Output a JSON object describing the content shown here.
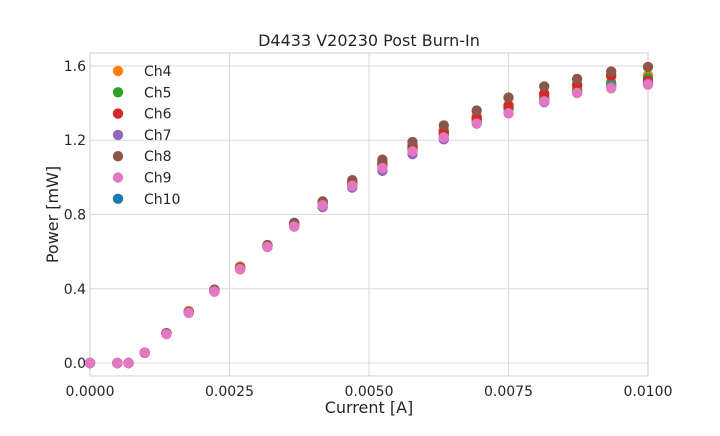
{
  "chart_data": {
    "type": "scatter",
    "title": "D4433 V20230 Post Burn-In",
    "xlabel": "Current [A]",
    "ylabel": "Power [mW]",
    "xlim": [
      0.0,
      0.01
    ],
    "ylim": [
      -0.07,
      1.67
    ],
    "xticks": [
      0.0,
      0.0025,
      0.005,
      0.0075,
      0.01
    ],
    "xtick_labels": [
      "0.0000",
      "0.0025",
      "0.0050",
      "0.0075",
      "0.0100"
    ],
    "yticks": [
      0.0,
      0.4,
      0.8,
      1.2,
      1.6
    ],
    "ytick_labels": [
      "0.0",
      "0.4",
      "0.8",
      "1.2",
      "1.6"
    ],
    "grid": true,
    "legend_position": "top-left",
    "x": [
      0.0,
      0.00049,
      0.00069,
      0.00098,
      0.00137,
      0.00177,
      0.00223,
      0.00269,
      0.00318,
      0.00366,
      0.00417,
      0.0047,
      0.00524,
      0.00578,
      0.00634,
      0.00693,
      0.0075,
      0.00814,
      0.00873,
      0.00934,
      0.01
    ],
    "series": [
      {
        "name": "Ch4",
        "color": "#ff7f0e",
        "values": [
          0.0,
          0.0,
          0.0,
          0.055,
          0.16,
          0.28,
          0.395,
          0.52,
          0.635,
          0.75,
          0.865,
          0.97,
          1.075,
          1.17,
          1.255,
          1.33,
          1.39,
          1.45,
          1.49,
          1.54,
          1.55
        ]
      },
      {
        "name": "Ch5",
        "color": "#2ca02c",
        "values": [
          0.0,
          0.0,
          0.0,
          0.055,
          0.16,
          0.275,
          0.39,
          0.51,
          0.63,
          0.75,
          0.87,
          0.975,
          1.08,
          1.17,
          1.245,
          1.31,
          1.37,
          1.42,
          1.47,
          1.51,
          1.535
        ]
      },
      {
        "name": "Ch6",
        "color": "#d62728",
        "values": [
          0.0,
          0.0,
          0.0,
          0.055,
          0.16,
          0.275,
          0.39,
          0.51,
          0.63,
          0.745,
          0.86,
          0.965,
          1.07,
          1.16,
          1.24,
          1.32,
          1.385,
          1.45,
          1.5,
          1.55,
          1.52
        ]
      },
      {
        "name": "Ch7",
        "color": "#9467bd",
        "values": [
          0.0,
          0.0,
          0.0,
          0.055,
          0.16,
          0.27,
          0.385,
          0.505,
          0.625,
          0.735,
          0.84,
          0.945,
          1.035,
          1.125,
          1.205,
          1.29,
          1.345,
          1.405,
          1.455,
          1.49,
          1.505
        ]
      },
      {
        "name": "Ch8",
        "color": "#8c564b",
        "values": [
          0.0,
          0.0,
          0.0,
          0.055,
          0.16,
          0.275,
          0.395,
          0.515,
          0.635,
          0.755,
          0.87,
          0.985,
          1.095,
          1.19,
          1.28,
          1.36,
          1.43,
          1.49,
          1.53,
          1.57,
          1.595
        ]
      },
      {
        "name": "Ch9",
        "color": "#e377c2",
        "values": [
          0.0,
          0.0,
          0.0,
          0.055,
          0.155,
          0.27,
          0.385,
          0.505,
          0.625,
          0.735,
          0.85,
          0.955,
          1.05,
          1.14,
          1.215,
          1.29,
          1.345,
          1.41,
          1.455,
          1.48,
          1.5
        ]
      },
      {
        "name": "Ch10",
        "color": "#1f77b4",
        "values": [
          0.0,
          0.0,
          0.0,
          0.055,
          0.16,
          0.275,
          0.39,
          0.51,
          0.63,
          0.745,
          0.855,
          0.96,
          1.06,
          1.15,
          1.23,
          1.31,
          1.37,
          1.43,
          1.47,
          1.5,
          1.51
        ]
      }
    ]
  }
}
